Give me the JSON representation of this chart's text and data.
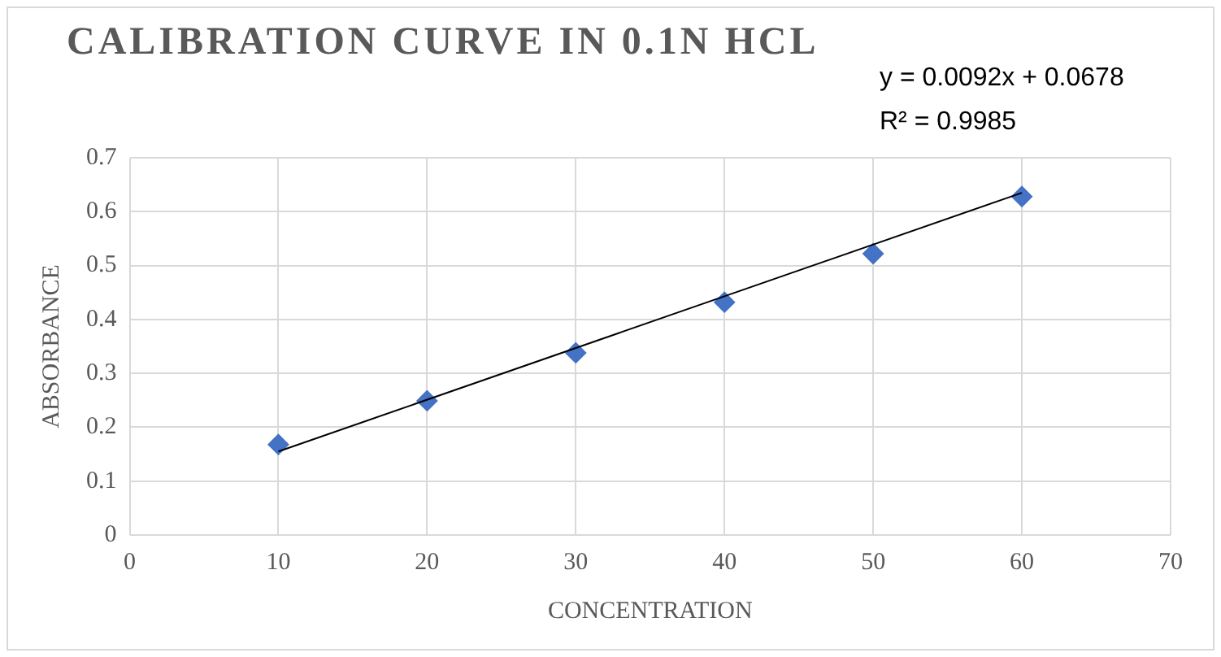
{
  "chart_data": {
    "type": "scatter",
    "title": "CALIBRATION CURVE IN 0.1N HCL",
    "xlabel": "CONCENTRATION",
    "ylabel": "ABSORBANCE",
    "annotations": [
      "y = 0.0092x + 0.0678",
      "R² = 0.9985"
    ],
    "x": [
      10,
      20,
      30,
      40,
      50,
      60
    ],
    "series": [
      {
        "color": "#4472c4",
        "values": [
          0.168,
          0.249,
          0.338,
          0.432,
          0.522,
          0.628
        ],
        "marker": "diamond"
      },
      {
        "type": "line",
        "color": "#000000",
        "x": [
          10,
          60
        ],
        "values": [
          0.155,
          0.635
        ],
        "marker": "none",
        "line_style": "solid"
      }
    ],
    "xlim": [
      0,
      70
    ],
    "xticks": [
      0,
      10,
      20,
      30,
      40,
      50,
      60,
      70
    ],
    "ylim": [
      0,
      0.7
    ],
    "yticks": [
      0,
      0.1,
      0.2,
      0.3,
      0.4,
      0.5,
      0.6,
      0.7
    ],
    "grid": true,
    "legend": false
  }
}
